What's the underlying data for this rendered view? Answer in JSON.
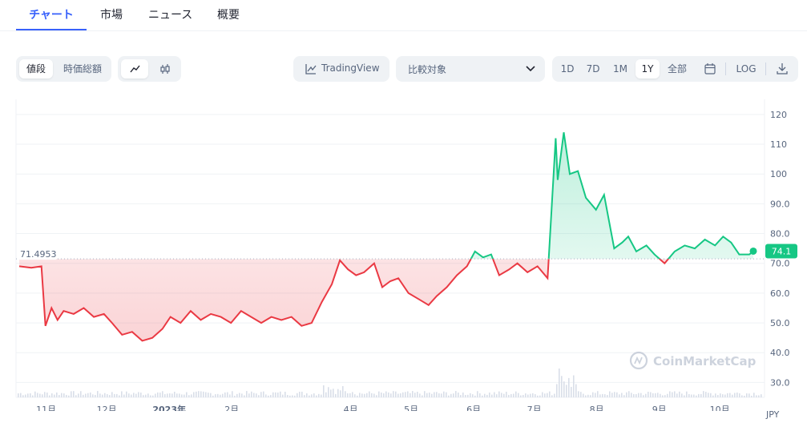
{
  "tabs": [
    "チャート",
    "市場",
    "ニュース",
    "概要"
  ],
  "toggle_type": {
    "price": "値段",
    "market_cap": "時価総額"
  },
  "icons": {
    "line": "line-chart-icon",
    "candle": "candlestick-icon",
    "tv": "tradingview-icon",
    "calendar": "calendar-icon",
    "download": "download-icon",
    "chevron": "chevron-down-icon"
  },
  "tradingview_label": "TradingView",
  "compare_placeholder": "比較対象",
  "ranges": [
    "1D",
    "7D",
    "1M",
    "1Y",
    "全部"
  ],
  "selected_range": "1Y",
  "log_label": "LOG",
  "watermark": "CoinMarketCap",
  "currency": "JPY",
  "colors": {
    "up": "#16c784",
    "down": "#ea3943",
    "accent": "#3861fb"
  },
  "chart_data": {
    "type": "area",
    "reference_price": "71.4953",
    "current_price": "74.1",
    "y_ticks": [
      "120",
      "110",
      "100",
      "90.0",
      "80.0",
      "70.0",
      "60.0",
      "50.0",
      "40.0",
      "30.0"
    ],
    "x_ticks": [
      "11月",
      "12月",
      "2023年",
      "2月",
      "4月",
      "5月",
      "6月",
      "7月",
      "8月",
      "9月",
      "10月"
    ],
    "ylim": [
      25,
      124
    ],
    "series": [
      {
        "x": [
          "2022-10-21",
          "2022-10-27",
          "2022-11-01",
          "2022-11-03",
          "2022-11-06",
          "2022-11-09",
          "2022-11-12",
          "2022-11-17",
          "2022-11-22",
          "2022-11-27",
          "2022-12-02",
          "2022-12-06",
          "2022-12-11",
          "2022-12-16",
          "2022-12-21",
          "2022-12-26",
          "2022-12-31",
          "2023-01-04",
          "2023-01-09",
          "2023-01-14",
          "2023-01-19",
          "2023-01-24",
          "2023-01-29",
          "2023-02-03",
          "2023-02-08",
          "2023-02-13",
          "2023-02-18",
          "2023-02-23",
          "2023-02-28",
          "2023-03-05",
          "2023-03-10",
          "2023-03-15",
          "2023-03-20",
          "2023-03-25",
          "2023-03-29",
          "2023-04-02",
          "2023-04-06",
          "2023-04-10",
          "2023-04-15",
          "2023-04-19",
          "2023-04-23",
          "2023-04-27",
          "2023-05-02",
          "2023-05-07",
          "2023-05-12",
          "2023-05-16",
          "2023-05-21",
          "2023-05-26",
          "2023-05-31",
          "2023-06-04",
          "2023-06-08",
          "2023-06-12",
          "2023-06-16",
          "2023-06-21",
          "2023-06-25",
          "2023-06-30",
          "2023-07-05",
          "2023-07-10",
          "2023-07-14",
          "2023-07-15",
          "2023-07-18",
          "2023-07-21",
          "2023-07-25",
          "2023-07-29",
          "2023-08-03",
          "2023-08-07",
          "2023-08-12",
          "2023-08-16",
          "2023-08-19",
          "2023-08-23",
          "2023-08-28",
          "2023-09-01",
          "2023-09-06",
          "2023-09-11",
          "2023-09-16",
          "2023-09-21",
          "2023-09-26",
          "2023-10-01",
          "2023-10-05",
          "2023-10-09",
          "2023-10-13",
          "2023-10-18",
          "2023-10-20"
        ],
        "y": [
          69,
          68.5,
          69,
          49,
          55,
          51,
          54,
          53,
          55,
          52,
          53,
          50,
          46,
          47,
          44,
          45,
          48,
          52,
          50,
          54,
          51,
          53,
          52,
          50,
          54,
          52,
          50,
          52,
          51,
          52,
          49,
          50,
          57,
          63,
          71,
          68,
          66,
          67,
          70,
          62,
          64,
          65,
          60,
          58,
          56,
          59,
          62,
          66,
          69,
          74,
          72,
          73,
          66,
          68,
          70,
          67,
          69,
          65,
          112,
          98,
          114,
          100,
          101,
          92,
          88,
          93,
          75,
          77,
          79,
          74,
          76,
          73,
          70,
          74,
          76,
          75,
          78,
          76,
          79,
          77,
          73,
          73,
          74
        ]
      }
    ]
  }
}
